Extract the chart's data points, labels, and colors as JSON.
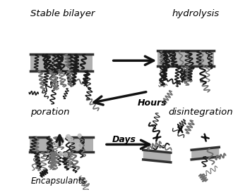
{
  "labels": {
    "top_left": "Stable bilayer",
    "top_right": "hydrolysis",
    "bottom_left": "poration",
    "bottom_right": "disintegration",
    "arrow_hours": "Hours",
    "arrow_days": "Days",
    "encapsulants": "Encapsulants"
  },
  "colors": {
    "background": "#ffffff",
    "membrane_gray": "#b0b0b0",
    "membrane_dark": "#303030",
    "chain_dark": "#1a1a1a",
    "chain_gray": "#707070",
    "chain_light": "#aaaaaa",
    "arrow_color": "#111111",
    "dot_gray": "#bbbbbb"
  },
  "figsize": [
    3.54,
    2.73
  ],
  "dpi": 100
}
